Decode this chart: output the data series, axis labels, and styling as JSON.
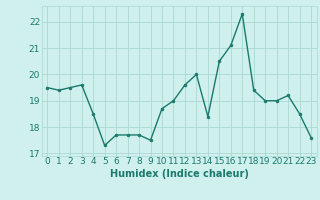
{
  "x": [
    0,
    1,
    2,
    3,
    4,
    5,
    6,
    7,
    8,
    9,
    10,
    11,
    12,
    13,
    14,
    15,
    16,
    17,
    18,
    19,
    20,
    21,
    22,
    23
  ],
  "y": [
    19.5,
    19.4,
    19.5,
    19.6,
    18.5,
    17.3,
    17.7,
    17.7,
    17.7,
    17.5,
    18.7,
    19.0,
    19.6,
    20.0,
    18.4,
    20.5,
    21.1,
    22.3,
    19.4,
    19.0,
    19.0,
    19.2,
    18.5,
    17.6
  ],
  "line_color": "#1a7a6e",
  "marker": "o",
  "marker_size": 2.0,
  "line_width": 1.0,
  "bg_color": "#cff0ec",
  "grid_color": "#aad8d3",
  "xlabel": "Humidex (Indice chaleur)",
  "xlabel_fontsize": 7,
  "tick_fontsize": 6.5,
  "ylim": [
    16.9,
    22.6
  ],
  "yticks": [
    17,
    18,
    19,
    20,
    21,
    22
  ],
  "xticks": [
    0,
    1,
    2,
    3,
    4,
    5,
    6,
    7,
    8,
    9,
    10,
    11,
    12,
    13,
    14,
    15,
    16,
    17,
    18,
    19,
    20,
    21,
    22,
    23
  ]
}
